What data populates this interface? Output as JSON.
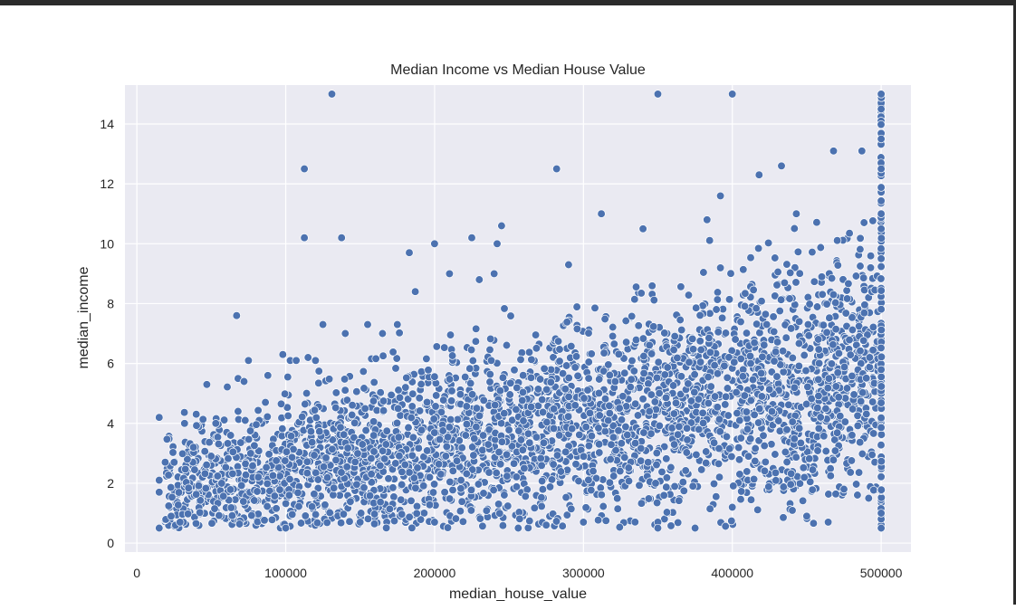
{
  "chart_data": {
    "type": "scatter",
    "title": "Median Income vs Median House Value",
    "xlabel": "median_house_value",
    "ylabel": "median_income",
    "xlim": [
      -8000,
      520000
    ],
    "ylim": [
      -0.3,
      15.3
    ],
    "xticks": [
      0,
      100000,
      200000,
      300000,
      400000,
      500000
    ],
    "xtick_labels": [
      "0",
      "100000",
      "200000",
      "300000",
      "400000",
      "500000"
    ],
    "yticks": [
      0,
      2,
      4,
      6,
      8,
      10,
      12,
      14
    ],
    "ytick_labels": [
      "0",
      "2",
      "4",
      "6",
      "8",
      "10",
      "12",
      "14"
    ],
    "grid": true,
    "legend": "none",
    "colors": {
      "marker": "#4c72b0",
      "marker_edge": "#ffffff",
      "plot_bg": "#eaeaf2",
      "grid": "#ffffff"
    },
    "series": [
      {
        "points": [
          [
            14999,
            0.5
          ],
          [
            14999,
            1.7
          ],
          [
            14999,
            2.1
          ],
          [
            15000,
            4.2
          ],
          [
            23000,
            0.9
          ],
          [
            25000,
            2.7
          ],
          [
            32000,
            4.0
          ],
          [
            38000,
            3.2
          ],
          [
            47000,
            5.3
          ],
          [
            53000,
            4.0
          ],
          [
            63000,
            3.6
          ],
          [
            67000,
            7.6
          ],
          [
            68000,
            4.4
          ],
          [
            68000,
            5.5
          ],
          [
            72000,
            5.4
          ],
          [
            75000,
            6.1
          ],
          [
            88000,
            5.6
          ],
          [
            98000,
            6.3
          ],
          [
            100000,
            0.5
          ],
          [
            103000,
            6.1
          ],
          [
            107000,
            6.1
          ],
          [
            112500,
            12.5
          ],
          [
            112500,
            10.2
          ],
          [
            115000,
            6.2
          ],
          [
            120000,
            6.1
          ],
          [
            125000,
            7.3
          ],
          [
            131000,
            15.0
          ],
          [
            137500,
            10.2
          ],
          [
            140000,
            7.0
          ],
          [
            150000,
            0.7
          ],
          [
            155000,
            7.3
          ],
          [
            165000,
            7.0
          ],
          [
            175000,
            7.3
          ],
          [
            183000,
            9.7
          ],
          [
            187000,
            8.4
          ],
          [
            200000,
            10.0
          ],
          [
            200000,
            0.7
          ],
          [
            210000,
            9.0
          ],
          [
            225000,
            10.2
          ],
          [
            230000,
            8.8
          ],
          [
            240000,
            9.0
          ],
          [
            242000,
            10.0
          ],
          [
            245000,
            10.6
          ],
          [
            275000,
            0.6
          ],
          [
            282000,
            12.5
          ],
          [
            290000,
            9.3
          ],
          [
            312000,
            11.0
          ],
          [
            340000,
            10.5
          ],
          [
            350000,
            15.0
          ],
          [
            350000,
            0.7
          ],
          [
            350000,
            0.5
          ],
          [
            375000,
            0.5
          ],
          [
            383000,
            10.8
          ],
          [
            392000,
            11.6
          ],
          [
            400000,
            15.0
          ],
          [
            400000,
            1.2
          ],
          [
            418000,
            12.3
          ],
          [
            433000,
            12.6
          ],
          [
            443000,
            11.0
          ],
          [
            450000,
            0.9
          ],
          [
            468000,
            13.1
          ],
          [
            487000,
            13.1
          ],
          [
            475000,
            1.8
          ],
          [
            500000,
            15.0
          ],
          [
            500000,
            14.5
          ],
          [
            500000,
            13.5
          ],
          [
            500000,
            12.5
          ],
          [
            500000,
            11.0
          ],
          [
            500000,
            10.5
          ],
          [
            500000,
            9.5
          ],
          [
            500000,
            0.5
          ],
          [
            500000,
            0.8
          ],
          [
            500000,
            1.0
          ]
        ]
      }
    ]
  }
}
